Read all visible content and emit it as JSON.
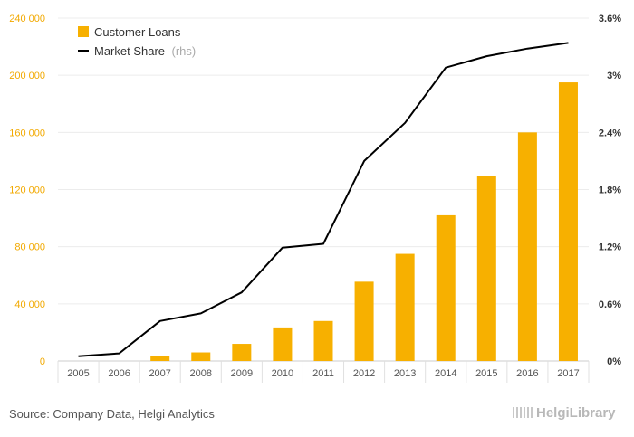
{
  "chart_data": {
    "type": "bar",
    "categories": [
      "2005",
      "2006",
      "2007",
      "2008",
      "2009",
      "2010",
      "2011",
      "2012",
      "2013",
      "2014",
      "2015",
      "2016",
      "2017"
    ],
    "series": [
      {
        "name": "Customer Loans",
        "type": "bar",
        "axis": "left",
        "color": "#f7b000",
        "values": [
          0,
          0,
          3500,
          6000,
          12000,
          23500,
          28000,
          55500,
          75000,
          102000,
          129500,
          160000,
          195000
        ]
      },
      {
        "name": "Market Share",
        "name_suffix": "(rhs)",
        "type": "line",
        "axis": "right",
        "color": "#000000",
        "values": [
          0.05,
          0.08,
          0.42,
          0.5,
          0.72,
          1.19,
          1.23,
          2.1,
          2.5,
          3.08,
          3.2,
          3.28,
          3.34
        ]
      }
    ],
    "y_left": {
      "ylim": [
        0,
        240000
      ],
      "ticks": [
        "0",
        "40 000",
        "80 000",
        "120 000",
        "160 000",
        "200 000",
        "240 000"
      ]
    },
    "y_right": {
      "ylim": [
        0,
        3.6
      ],
      "ticks": [
        "0%",
        "0.6%",
        "1.2%",
        "1.8%",
        "2.4%",
        "3%",
        "3.6%"
      ]
    },
    "grid": true,
    "legend_position": "top-left"
  },
  "footer": {
    "source": "Source: Company Data, Helgi Analytics",
    "brand": "HelgiLibrary"
  }
}
